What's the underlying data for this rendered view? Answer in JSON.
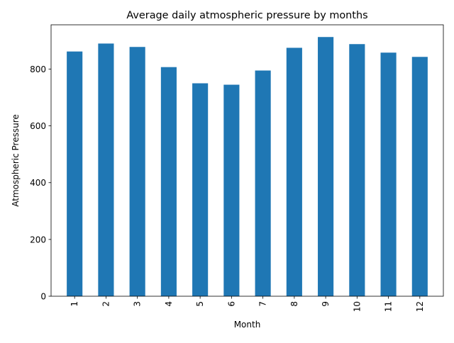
{
  "chart_data": {
    "type": "bar",
    "title": "Average daily atmospheric pressure by months",
    "xlabel": "Month",
    "ylabel": "Atmospheric Pressure",
    "categories": [
      "1",
      "2",
      "3",
      "4",
      "5",
      "6",
      "7",
      "8",
      "9",
      "10",
      "11",
      "12"
    ],
    "values": [
      862,
      890,
      878,
      807,
      750,
      745,
      795,
      875,
      913,
      888,
      858,
      843
    ],
    "ylim": [
      0,
      956
    ],
    "yticks": [
      0,
      200,
      400,
      600,
      800
    ],
    "grid": false,
    "legend": "none",
    "bar_color": "#1f77b4",
    "x_tick_rotation": "vertical"
  }
}
